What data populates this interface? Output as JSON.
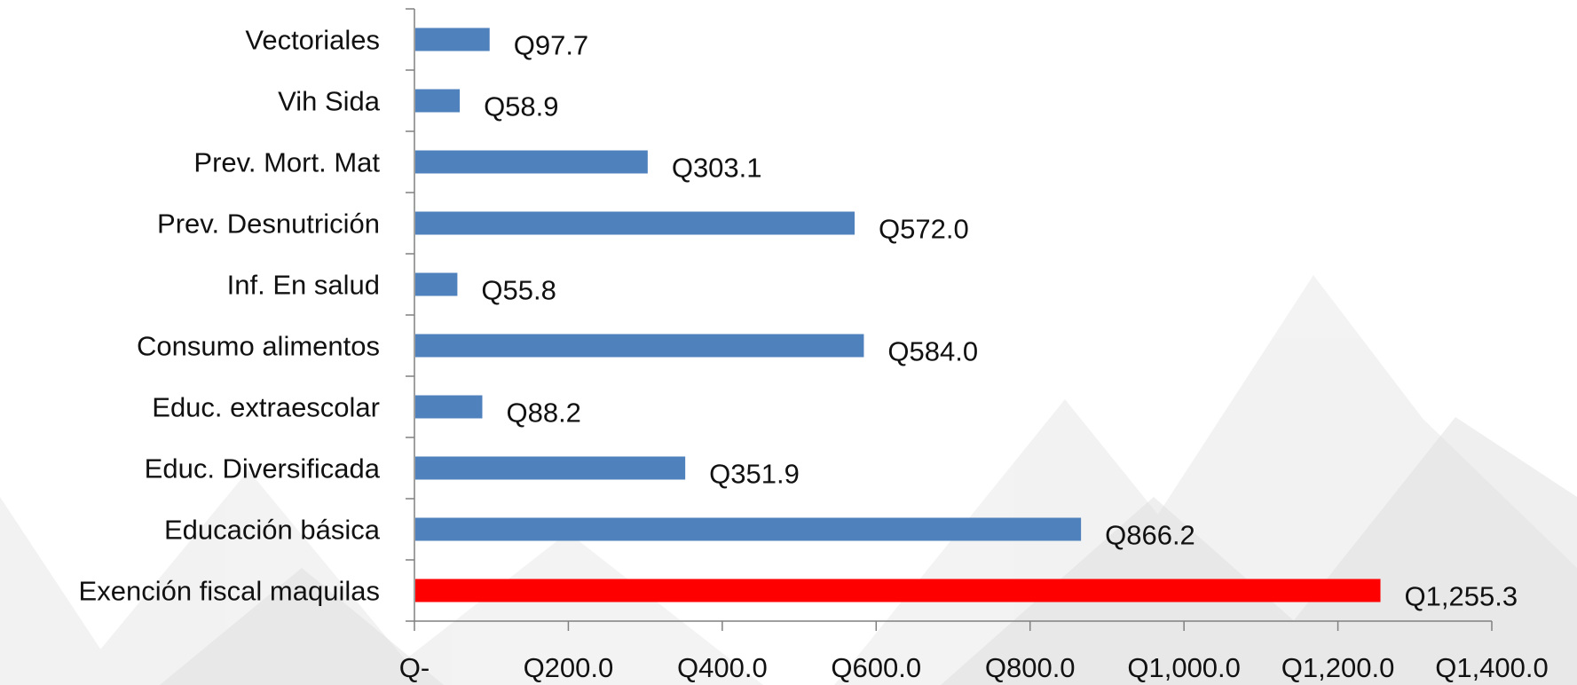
{
  "chart_data": {
    "type": "bar",
    "orientation": "horizontal",
    "title": "",
    "xlabel": "",
    "ylabel": "",
    "categories": [
      "Vectoriales",
      "Vih Sida",
      "Prev. Mort. Mat",
      "Prev. Desnutrición",
      "Inf. En salud",
      "Consumo alimentos",
      "Educ. extraescolar",
      "Educ. Diversificada",
      "Educación básica",
      "Exención fiscal maquilas"
    ],
    "values": [
      97.7,
      58.9,
      303.1,
      572.0,
      55.8,
      584.0,
      88.2,
      351.9,
      866.2,
      1255.3
    ],
    "value_labels": [
      "Q97.7",
      "Q58.9",
      "Q303.1",
      "Q572.0",
      "Q55.8",
      "Q584.0",
      "Q88.2",
      "Q351.9",
      "Q866.2",
      "Q1,255.3"
    ],
    "bar_colors": [
      "#4f81bd",
      "#4f81bd",
      "#4f81bd",
      "#4f81bd",
      "#4f81bd",
      "#4f81bd",
      "#4f81bd",
      "#4f81bd",
      "#4f81bd",
      "#ff0000"
    ],
    "xlim": [
      0,
      1400
    ],
    "x_ticks": [
      0,
      200,
      400,
      600,
      800,
      1000,
      1200,
      1400
    ],
    "x_tick_labels": [
      "Q-",
      "Q200.0",
      "Q400.0",
      "Q600.0",
      "Q800.0",
      "Q1,000.0",
      "Q1,200.0",
      "Q1,400.0"
    ],
    "grid": false,
    "legend": "none"
  },
  "colors": {
    "default_bar": "#4f81bd",
    "highlight_bar": "#ff0000",
    "axis": "#808080",
    "text": "#111111"
  }
}
